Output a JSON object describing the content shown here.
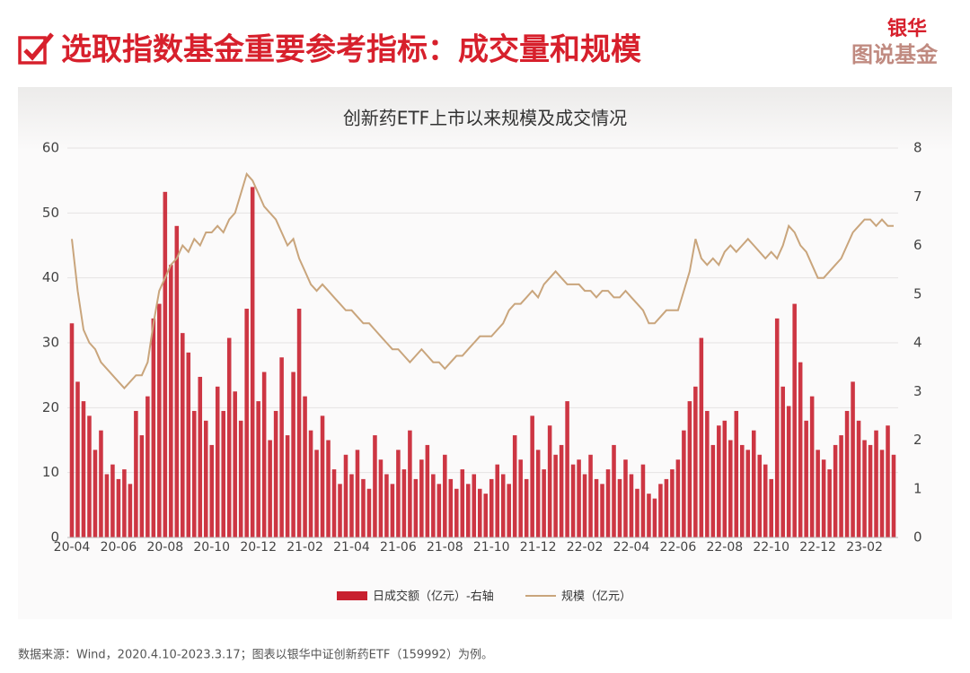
{
  "header": {
    "title": "选取指数基金重要参考指标：成交量和规模",
    "logo_top": "银华",
    "logo_bottom": "图说基金"
  },
  "chart_data": {
    "type": "bar-line",
    "title": "创新药ETF上市以来规模及成交情况",
    "categories": [
      "20-04",
      null,
      null,
      null,
      null,
      null,
      null,
      null,
      "20-06",
      null,
      null,
      null,
      null,
      null,
      null,
      null,
      "20-08",
      null,
      null,
      null,
      null,
      null,
      null,
      null,
      "20-10",
      null,
      null,
      null,
      null,
      null,
      null,
      null,
      "20-12",
      null,
      null,
      null,
      null,
      null,
      null,
      null,
      "21-02",
      null,
      null,
      null,
      null,
      null,
      null,
      null,
      "21-04",
      null,
      null,
      null,
      null,
      null,
      null,
      null,
      "21-06",
      null,
      null,
      null,
      null,
      null,
      null,
      null,
      "21-08",
      null,
      null,
      null,
      null,
      null,
      null,
      null,
      "21-10",
      null,
      null,
      null,
      null,
      null,
      null,
      null,
      "21-12",
      null,
      null,
      null,
      null,
      null,
      null,
      null,
      "22-02",
      null,
      null,
      null,
      null,
      null,
      null,
      null,
      "22-04",
      null,
      null,
      null,
      null,
      null,
      null,
      null,
      "22-06",
      null,
      null,
      null,
      null,
      null,
      null,
      null,
      "22-08",
      null,
      null,
      null,
      null,
      null,
      null,
      null,
      "22-10",
      null,
      null,
      null,
      null,
      null,
      null,
      null,
      "22-12",
      null,
      null,
      null,
      null,
      null,
      null,
      null,
      "23-02",
      null,
      null,
      null,
      null,
      null
    ],
    "series": [
      {
        "name": "日成交额（亿元）-右轴",
        "type": "bar",
        "axis": "y2",
        "color": "#c8202f",
        "values": [
          4.4,
          3.2,
          2.8,
          2.5,
          1.8,
          2.2,
          1.3,
          1.5,
          1.2,
          1.4,
          1.1,
          2.6,
          2.1,
          2.9,
          4.5,
          4.8,
          7.1,
          5.6,
          6.4,
          4.2,
          3.8,
          2.6,
          3.3,
          2.4,
          1.9,
          3.1,
          2.6,
          4.1,
          3.0,
          2.4,
          4.7,
          7.2,
          2.8,
          3.4,
          2.0,
          2.6,
          3.7,
          2.1,
          3.4,
          4.7,
          2.9,
          2.2,
          1.8,
          2.5,
          2.0,
          1.4,
          1.1,
          1.7,
          1.3,
          1.8,
          1.2,
          1.0,
          2.1,
          1.6,
          1.3,
          1.1,
          1.8,
          1.4,
          2.2,
          1.2,
          1.6,
          1.9,
          1.3,
          1.1,
          1.7,
          1.2,
          1.0,
          1.4,
          1.1,
          1.3,
          1.0,
          0.9,
          1.2,
          1.5,
          1.3,
          1.1,
          2.1,
          1.6,
          1.2,
          2.5,
          1.8,
          1.4,
          2.3,
          1.7,
          1.9,
          2.8,
          1.5,
          1.6,
          1.3,
          1.7,
          1.2,
          1.1,
          1.4,
          1.9,
          1.2,
          1.6,
          1.3,
          1.0,
          1.5,
          0.9,
          0.8,
          1.1,
          1.2,
          1.4,
          1.6,
          2.2,
          2.8,
          3.1,
          4.1,
          2.6,
          1.9,
          2.3,
          2.4,
          2.0,
          2.6,
          1.9,
          1.8,
          2.2,
          1.7,
          1.5,
          1.2,
          4.5,
          3.1,
          2.7,
          4.8,
          3.6,
          2.4,
          2.9,
          1.8,
          1.6,
          1.4,
          1.9,
          2.1,
          2.6,
          3.2,
          2.4,
          2.0,
          1.9,
          2.2,
          1.8,
          2.3,
          1.7
        ]
      },
      {
        "name": "规模（亿元）",
        "type": "line",
        "axis": "y",
        "color": "#c9a57c",
        "values": [
          46,
          38,
          32,
          30,
          29,
          27,
          26,
          25,
          24,
          23,
          24,
          25,
          25,
          27,
          33,
          38,
          40,
          42,
          43,
          45,
          44,
          46,
          45,
          47,
          47,
          48,
          47,
          49,
          50,
          53,
          56,
          55,
          53,
          51,
          50,
          49,
          47,
          45,
          46,
          43,
          41,
          39,
          38,
          39,
          38,
          37,
          36,
          35,
          35,
          34,
          33,
          33,
          32,
          31,
          30,
          29,
          29,
          28,
          27,
          28,
          29,
          28,
          27,
          27,
          26,
          27,
          28,
          28,
          29,
          30,
          31,
          31,
          31,
          32,
          33,
          35,
          36,
          36,
          37,
          38,
          37,
          39,
          40,
          41,
          40,
          39,
          39,
          39,
          38,
          38,
          37,
          38,
          38,
          37,
          37,
          38,
          37,
          36,
          35,
          33,
          33,
          34,
          35,
          35,
          35,
          38,
          41,
          46,
          43,
          42,
          43,
          42,
          44,
          45,
          44,
          45,
          46,
          45,
          44,
          43,
          44,
          43,
          45,
          48,
          47,
          45,
          44,
          42,
          40,
          40,
          41,
          42,
          43,
          45,
          47,
          48,
          49,
          49,
          48,
          49,
          48,
          48
        ]
      }
    ],
    "ylim": [
      0,
      60
    ],
    "yticks": [
      0,
      10,
      20,
      30,
      40,
      50,
      60
    ],
    "y2lim": [
      0,
      8
    ],
    "y2ticks": [
      0,
      1,
      2,
      3,
      4,
      5,
      6,
      7,
      8
    ],
    "grid": true
  },
  "footer": {
    "source": "数据来源：Wind，2020.4.10-2023.3.17；图表以银华中证创新药ETF（159992）为例。"
  }
}
